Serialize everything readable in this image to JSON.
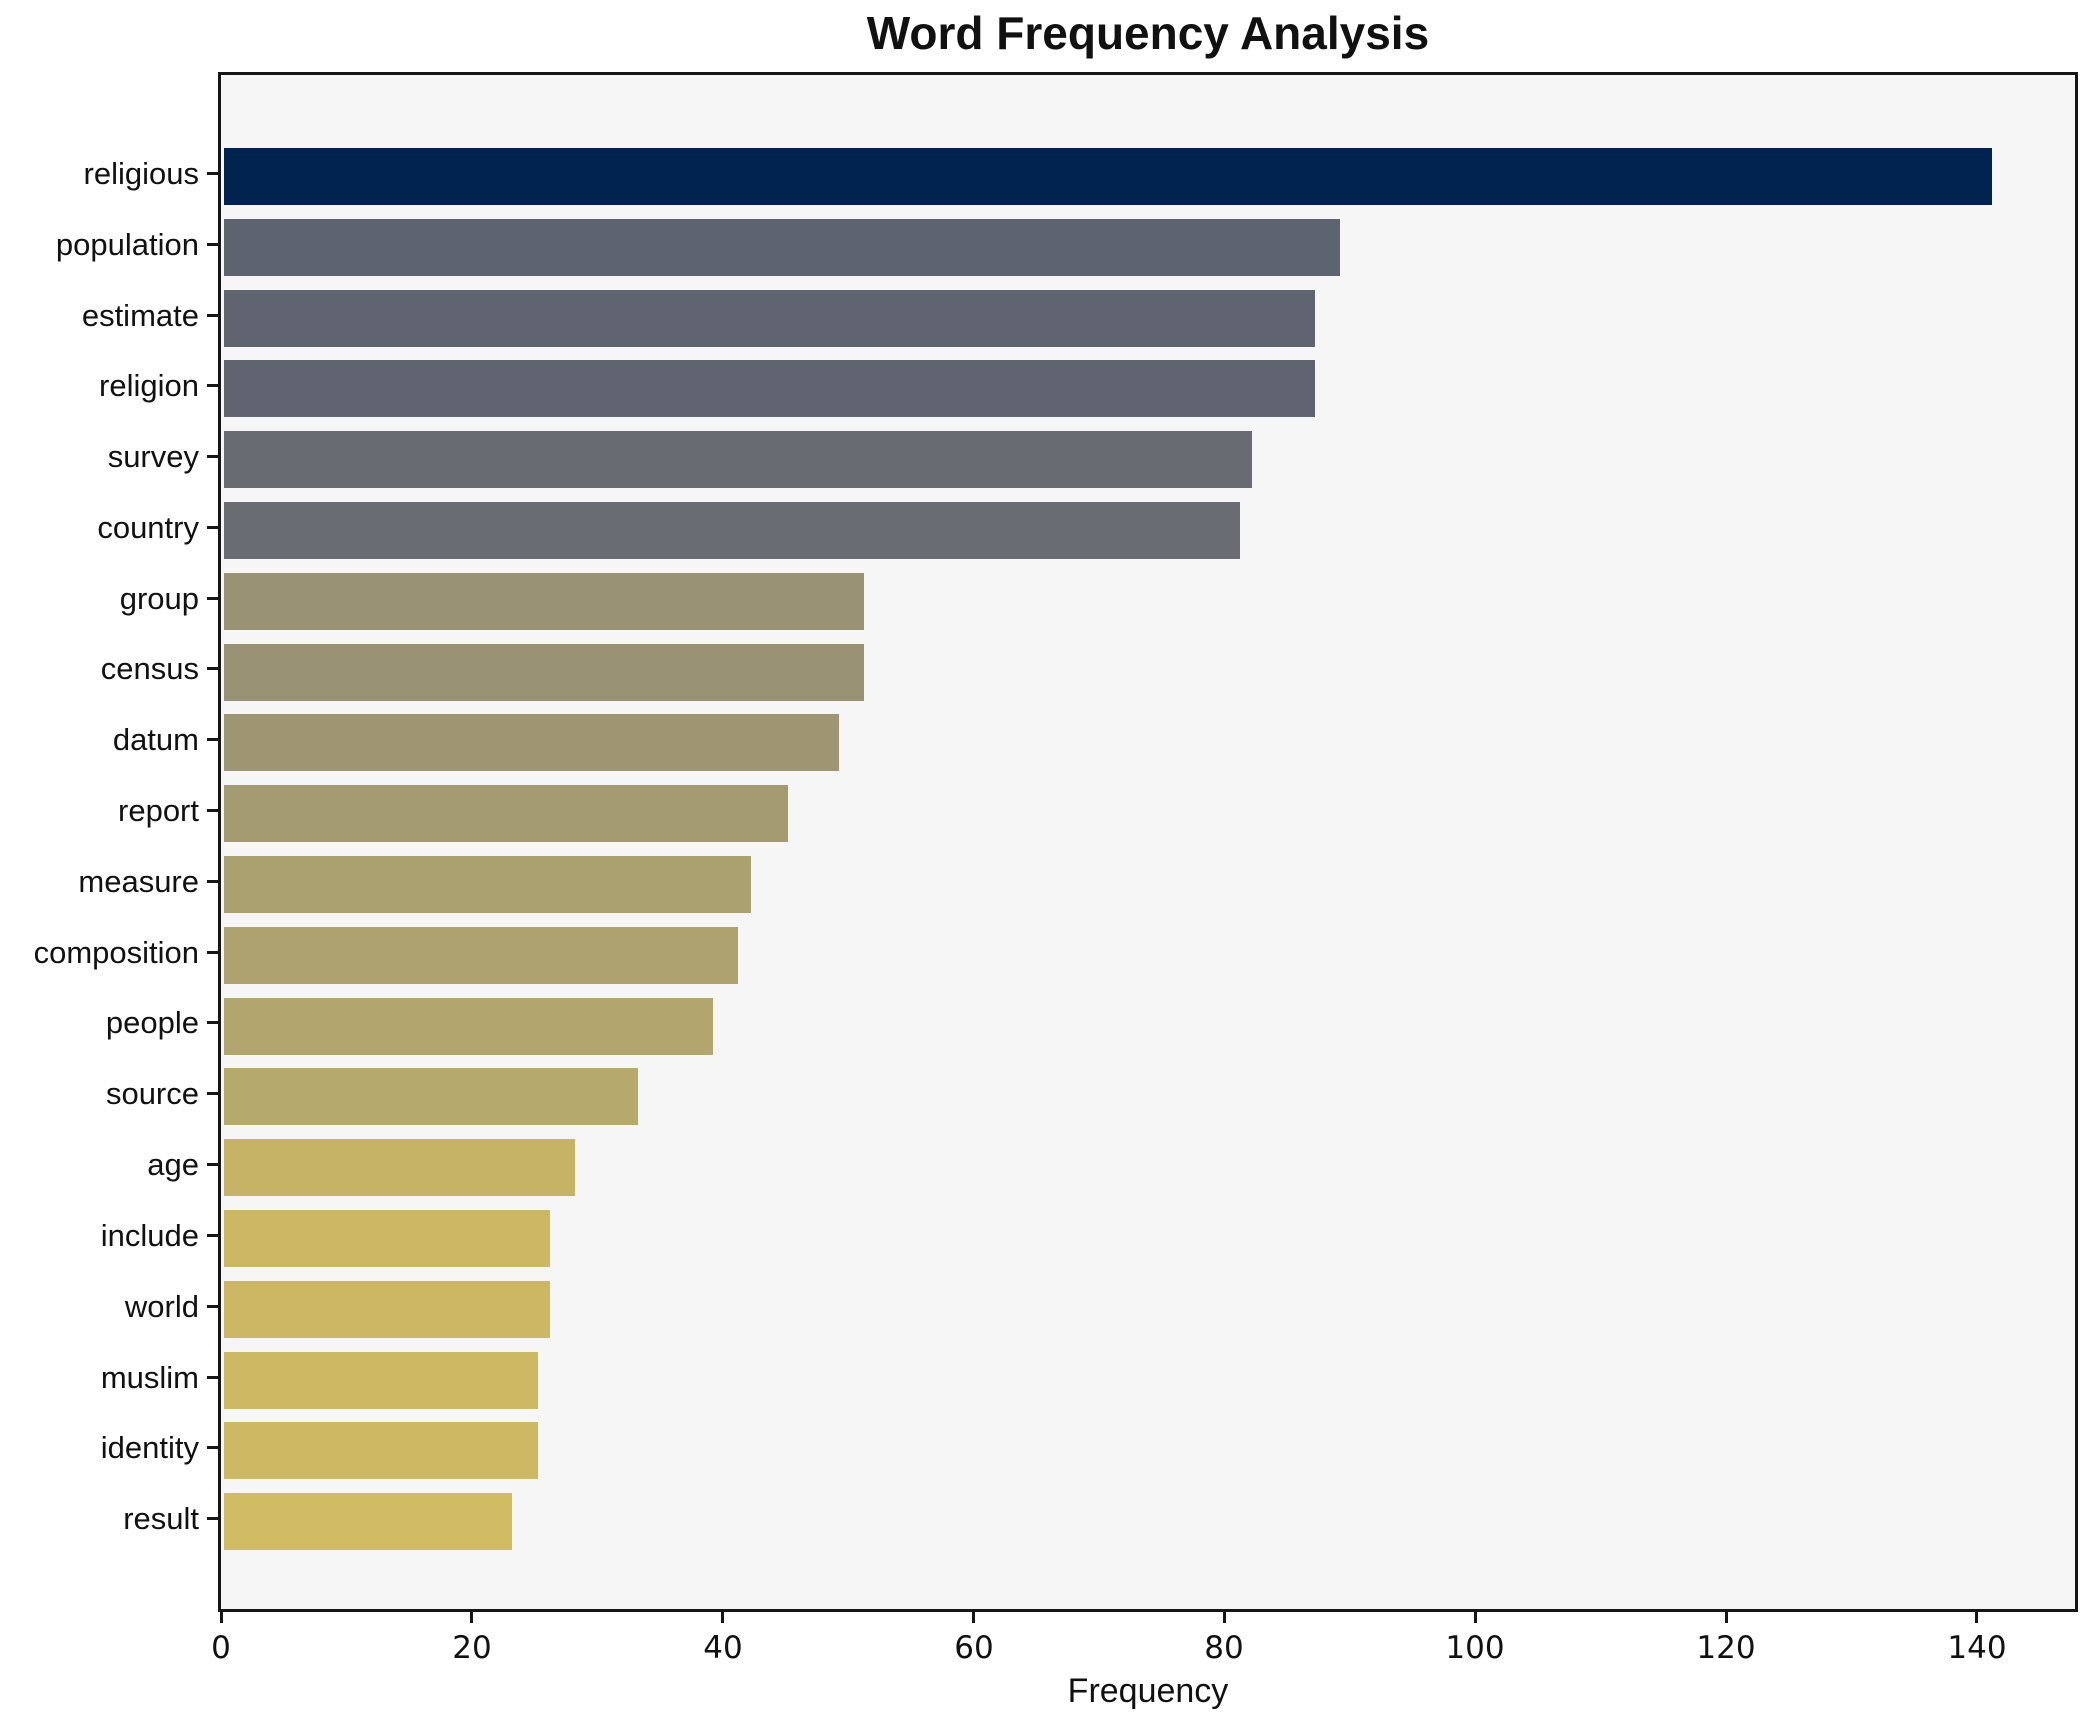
{
  "title": "Word Frequency Analysis",
  "chart_data": {
    "type": "bar",
    "orientation": "horizontal",
    "title": "Word Frequency Analysis",
    "xlabel": "Frequency",
    "ylabel": "",
    "categories": [
      "religious",
      "population",
      "estimate",
      "religion",
      "survey",
      "country",
      "group",
      "census",
      "datum",
      "report",
      "measure",
      "composition",
      "people",
      "source",
      "age",
      "include",
      "world",
      "muslim",
      "identity",
      "result"
    ],
    "values": [
      141,
      89,
      87,
      87,
      82,
      81,
      51,
      51,
      49,
      45,
      42,
      41,
      39,
      33,
      28,
      26,
      26,
      25,
      25,
      23
    ],
    "bar_colors": [
      "#00234f",
      "#5e6370",
      "#606470",
      "#606470",
      "#686b72",
      "#696c72",
      "#9a9274",
      "#9a9274",
      "#9e9673",
      "#a49b71",
      "#aba06f",
      "#aea26f",
      "#b2a56d",
      "#b5a96c",
      "#c6b365",
      "#cbb764",
      "#cbb764",
      "#cdb963",
      "#cdb963",
      "#d0bc62"
    ],
    "xticks": [
      0,
      20,
      40,
      60,
      80,
      100,
      120,
      140
    ],
    "xlim": [
      0,
      148.3
    ],
    "grid": false,
    "legend": null,
    "colormap": "cividis (value-mapped, high=dark navy, low=yellow-khaki)",
    "plot_background": "#f6f6f7",
    "figure_background": "#ffffff",
    "spine_color": "#161616"
  }
}
